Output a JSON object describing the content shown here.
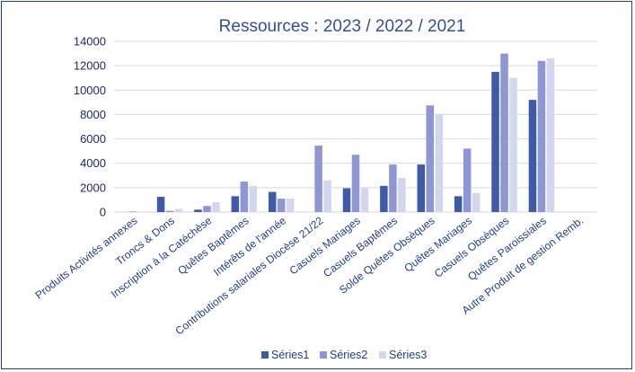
{
  "chart_data": {
    "type": "bar",
    "title": "Ressources :  2023 / 2022 / 2021",
    "xlabel": "",
    "ylabel": "",
    "ylim": [
      0,
      14000
    ],
    "yticks": [
      0,
      2000,
      4000,
      6000,
      8000,
      10000,
      12000,
      14000
    ],
    "grid": true,
    "legend_position": "bottom",
    "categories": [
      "Produits Activités annexes",
      "Troncs & Dons",
      "Inscription à la Catéchèse",
      "Quêtes Baptêmes",
      "Intérêts de l'année",
      "Contributions salariales Diocèse 21/22",
      "Casuels Mariages",
      "Casuels Baptêmes",
      "Solde Quêtes Obsèques",
      "Quêtes Mariages",
      "Casuels Obsèques",
      "Quêtes Paroissiales",
      "Autre Produit de gestion Remb."
    ],
    "series": [
      {
        "name": "Séries1",
        "color": "#3f5aa8",
        "values": [
          0,
          1250,
          200,
          1300,
          1650,
          0,
          1950,
          2150,
          3900,
          1300,
          11500,
          9200,
          0
        ]
      },
      {
        "name": "Séries2",
        "color": "#8e96d6",
        "values": [
          50,
          100,
          500,
          2500,
          1100,
          5450,
          4700,
          3900,
          8750,
          5200,
          13000,
          12400,
          0
        ]
      },
      {
        "name": "Séries3",
        "color": "#d3d6ef",
        "values": [
          30,
          250,
          800,
          2150,
          1100,
          2600,
          1950,
          2800,
          8000,
          1550,
          11000,
          12600,
          0
        ]
      }
    ]
  }
}
